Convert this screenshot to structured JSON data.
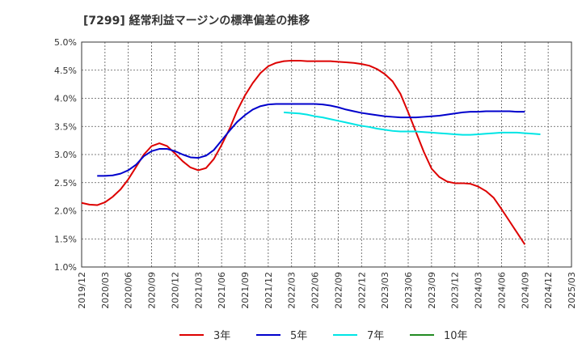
{
  "chart_data": {
    "type": "line",
    "title": "[7299]  経常利益マージンの標準偏差の推移",
    "xlabel": "",
    "ylabel": "",
    "ylim": [
      1.0,
      5.0
    ],
    "y_ticks": [
      "1.0%",
      "1.5%",
      "2.0%",
      "2.5%",
      "3.0%",
      "3.5%",
      "4.0%",
      "4.5%",
      "5.0%"
    ],
    "x_ticks": [
      "2019/12",
      "2020/03",
      "2020/06",
      "2020/09",
      "2020/12",
      "2021/03",
      "2021/06",
      "2021/09",
      "2021/12",
      "2022/03",
      "2022/06",
      "2022/09",
      "2022/12",
      "2023/03",
      "2023/06",
      "2023/09",
      "2023/12",
      "2024/03",
      "2024/06",
      "2024/09",
      "2024/12",
      "2025/03"
    ],
    "grid": true,
    "legend_position": "bottom",
    "series": [
      {
        "name": "3年",
        "color": "#dd0000",
        "points": [
          [
            0,
            2.14
          ],
          [
            1,
            2.11
          ],
          [
            2,
            2.1
          ],
          [
            3,
            2.15
          ],
          [
            4,
            2.25
          ],
          [
            5,
            2.38
          ],
          [
            6,
            2.56
          ],
          [
            7,
            2.78
          ],
          [
            8,
            3.0
          ],
          [
            9,
            3.15
          ],
          [
            10,
            3.2
          ],
          [
            11,
            3.15
          ],
          [
            12,
            3.02
          ],
          [
            13,
            2.88
          ],
          [
            14,
            2.77
          ],
          [
            15,
            2.72
          ],
          [
            16,
            2.76
          ],
          [
            17,
            2.92
          ],
          [
            18,
            3.17
          ],
          [
            19,
            3.45
          ],
          [
            20,
            3.78
          ],
          [
            21,
            4.05
          ],
          [
            22,
            4.27
          ],
          [
            23,
            4.45
          ],
          [
            24,
            4.57
          ],
          [
            25,
            4.63
          ],
          [
            26,
            4.66
          ],
          [
            27,
            4.67
          ],
          [
            28,
            4.67
          ],
          [
            29,
            4.66
          ],
          [
            30,
            4.66
          ],
          [
            31,
            4.66
          ],
          [
            32,
            4.66
          ],
          [
            33,
            4.65
          ],
          [
            34,
            4.64
          ],
          [
            35,
            4.63
          ],
          [
            36,
            4.61
          ],
          [
            37,
            4.58
          ],
          [
            38,
            4.52
          ],
          [
            39,
            4.43
          ],
          [
            40,
            4.3
          ],
          [
            41,
            4.08
          ],
          [
            42,
            3.75
          ],
          [
            43,
            3.4
          ],
          [
            44,
            3.05
          ],
          [
            45,
            2.75
          ],
          [
            46,
            2.6
          ],
          [
            47,
            2.52
          ],
          [
            48,
            2.49
          ],
          [
            49,
            2.49
          ],
          [
            50,
            2.48
          ],
          [
            51,
            2.43
          ],
          [
            52,
            2.35
          ],
          [
            53,
            2.23
          ],
          [
            54,
            2.03
          ],
          [
            55,
            1.82
          ],
          [
            56,
            1.61
          ],
          [
            57,
            1.4
          ]
        ]
      },
      {
        "name": "5年",
        "color": "#0000cc",
        "points": [
          [
            2,
            2.62
          ],
          [
            3,
            2.62
          ],
          [
            4,
            2.63
          ],
          [
            5,
            2.66
          ],
          [
            6,
            2.72
          ],
          [
            7,
            2.82
          ],
          [
            8,
            2.97
          ],
          [
            9,
            3.06
          ],
          [
            10,
            3.1
          ],
          [
            11,
            3.1
          ],
          [
            12,
            3.06
          ],
          [
            13,
            3.0
          ],
          [
            14,
            2.95
          ],
          [
            15,
            2.94
          ],
          [
            16,
            2.98
          ],
          [
            17,
            3.08
          ],
          [
            18,
            3.25
          ],
          [
            19,
            3.42
          ],
          [
            20,
            3.58
          ],
          [
            21,
            3.7
          ],
          [
            22,
            3.8
          ],
          [
            23,
            3.86
          ],
          [
            24,
            3.89
          ],
          [
            25,
            3.9
          ],
          [
            26,
            3.9
          ],
          [
            27,
            3.9
          ],
          [
            28,
            3.9
          ],
          [
            29,
            3.9
          ],
          [
            30,
            3.9
          ],
          [
            31,
            3.89
          ],
          [
            32,
            3.87
          ],
          [
            33,
            3.84
          ],
          [
            34,
            3.8
          ],
          [
            35,
            3.77
          ],
          [
            36,
            3.74
          ],
          [
            37,
            3.72
          ],
          [
            38,
            3.7
          ],
          [
            39,
            3.68
          ],
          [
            40,
            3.67
          ],
          [
            41,
            3.66
          ],
          [
            42,
            3.66
          ],
          [
            43,
            3.66
          ],
          [
            44,
            3.67
          ],
          [
            45,
            3.68
          ],
          [
            46,
            3.69
          ],
          [
            47,
            3.71
          ],
          [
            48,
            3.73
          ],
          [
            49,
            3.75
          ],
          [
            50,
            3.76
          ],
          [
            51,
            3.76
          ],
          [
            52,
            3.77
          ],
          [
            53,
            3.77
          ],
          [
            54,
            3.77
          ],
          [
            55,
            3.77
          ],
          [
            56,
            3.76
          ],
          [
            57,
            3.76
          ]
        ]
      },
      {
        "name": "7年",
        "color": "#00e5e5",
        "points": [
          [
            26,
            3.75
          ],
          [
            27,
            3.74
          ],
          [
            28,
            3.73
          ],
          [
            29,
            3.71
          ],
          [
            30,
            3.68
          ],
          [
            31,
            3.66
          ],
          [
            32,
            3.63
          ],
          [
            33,
            3.6
          ],
          [
            34,
            3.57
          ],
          [
            35,
            3.54
          ],
          [
            36,
            3.51
          ],
          [
            37,
            3.49
          ],
          [
            38,
            3.46
          ],
          [
            39,
            3.44
          ],
          [
            40,
            3.42
          ],
          [
            41,
            3.41
          ],
          [
            42,
            3.41
          ],
          [
            43,
            3.41
          ],
          [
            44,
            3.4
          ],
          [
            45,
            3.39
          ],
          [
            46,
            3.38
          ],
          [
            47,
            3.37
          ],
          [
            48,
            3.36
          ],
          [
            49,
            3.35
          ],
          [
            50,
            3.35
          ],
          [
            51,
            3.36
          ],
          [
            52,
            3.37
          ],
          [
            53,
            3.38
          ],
          [
            54,
            3.39
          ],
          [
            55,
            3.39
          ],
          [
            56,
            3.39
          ],
          [
            57,
            3.38
          ],
          [
            58,
            3.37
          ],
          [
            59,
            3.36
          ]
        ]
      },
      {
        "name": "10年",
        "color": "#228b22",
        "points": []
      }
    ]
  }
}
